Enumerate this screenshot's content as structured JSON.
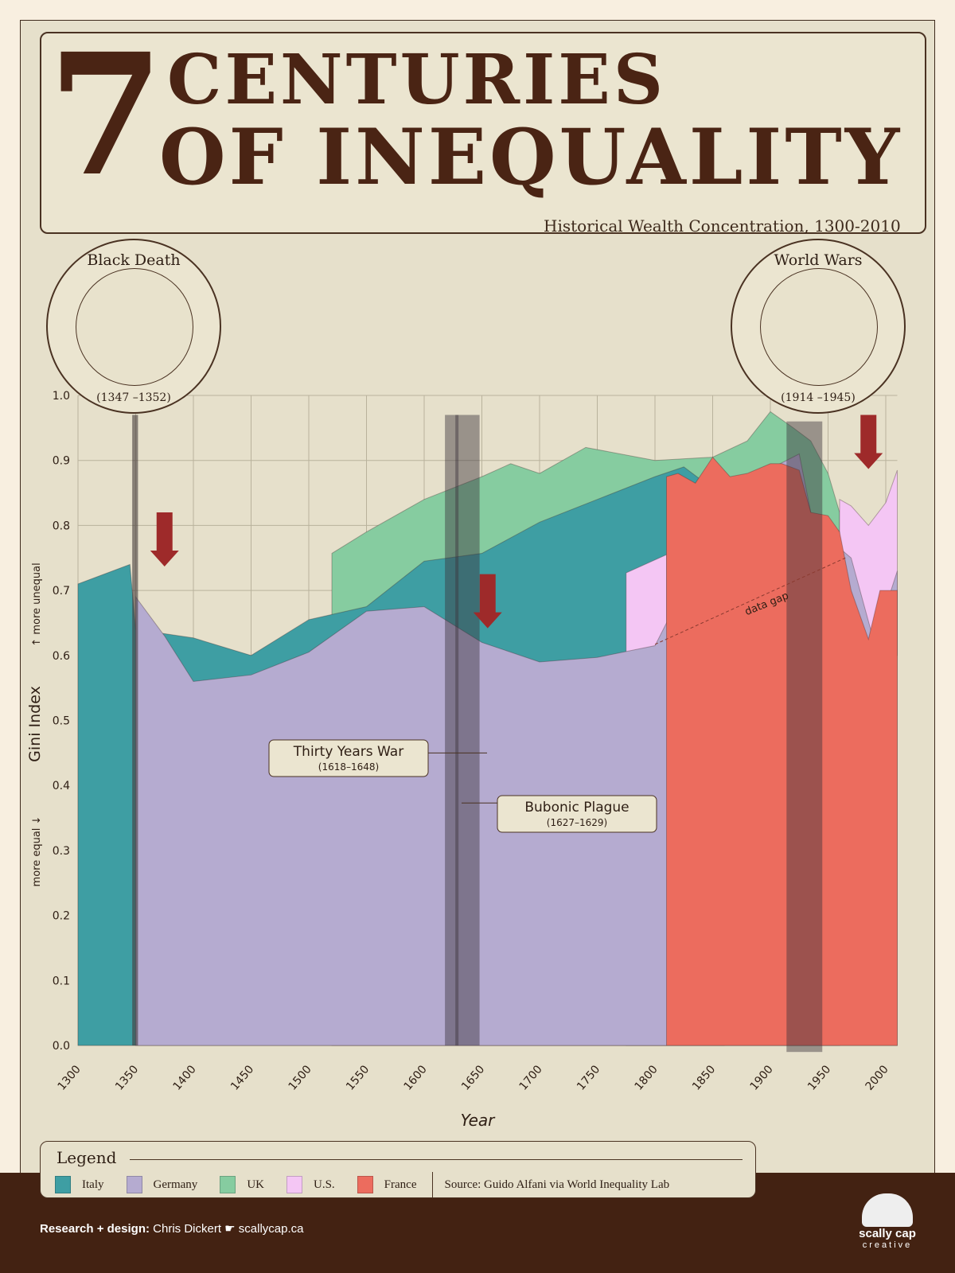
{
  "title": {
    "number": "7",
    "line1": "CENTURIES",
    "line2": "OF INEQUALITY",
    "subtitle": "Historical Wealth Concentration, 1300-2010"
  },
  "medallions": [
    {
      "name": "Black Death",
      "dates": "(1347 –1352)"
    },
    {
      "name": "World Wars",
      "dates": "(1914 –1945)"
    }
  ],
  "chart_data": {
    "type": "area",
    "title": "7 Centuries of Inequality",
    "xlabel": "Year",
    "ylabel": "Gini Index",
    "ylabel_up": "more unequal",
    "ylabel_down": "more equal",
    "xlim": [
      1300,
      2010
    ],
    "ylim": [
      0,
      1
    ],
    "xticks": [
      1300,
      1350,
      1400,
      1450,
      1500,
      1550,
      1600,
      1650,
      1700,
      1750,
      1800,
      1850,
      1900,
      1950,
      2000
    ],
    "yticks": [
      "0.0",
      "0.1",
      "0.2",
      "0.3",
      "0.4",
      "0.5",
      "0.6",
      "0.7",
      "0.8",
      "0.9",
      "1.0"
    ],
    "grid": true,
    "series": [
      {
        "name": "UK",
        "color": "#86cca0",
        "x": [
          1520,
          1550,
          1600,
          1650,
          1675,
          1700,
          1740,
          1800,
          1850,
          1880,
          1900,
          1920,
          1935,
          1950,
          1960
        ],
        "y": [
          0.757,
          0.79,
          0.84,
          0.875,
          0.895,
          0.88,
          0.92,
          0.9,
          0.905,
          0.93,
          0.975,
          0.95,
          0.93,
          0.88,
          0.82
        ]
      },
      {
        "name": "Italy",
        "color": "#3e9ea3",
        "x": [
          1300,
          1345,
          1350,
          1400,
          1450,
          1500,
          1550,
          1600,
          1650,
          1700,
          1750,
          1800,
          1825,
          1840,
          1860
        ],
        "y": [
          0.71,
          0.74,
          0.64,
          0.627,
          0.6,
          0.655,
          0.675,
          0.745,
          0.757,
          0.805,
          0.84,
          0.875,
          0.89,
          0.87,
          0.88
        ]
      },
      {
        "name": "U.S.",
        "color": "#f4c6f4",
        "x": [
          1775,
          1810,
          1960,
          1970,
          1985,
          2000,
          2010
        ],
        "y": [
          0.727,
          0.755,
          0.84,
          0.83,
          0.8,
          0.835,
          0.885
        ]
      },
      {
        "name": "Germany",
        "color": "#b5abd0",
        "x": [
          1350,
          1375,
          1400,
          1450,
          1500,
          1550,
          1600,
          1650,
          1700,
          1750,
          1800,
          1870,
          1925,
          1935,
          1950,
          1970,
          1990,
          2010
        ],
        "y": [
          0.69,
          0.63,
          0.56,
          0.57,
          0.605,
          0.668,
          0.675,
          0.62,
          0.59,
          0.597,
          0.615,
          0.86,
          0.91,
          0.82,
          0.78,
          0.75,
          0.62,
          0.73
        ]
      },
      {
        "name": "France",
        "color": "#ec6c5e",
        "x": [
          1810,
          1820,
          1835,
          1850,
          1865,
          1880,
          1900,
          1910,
          1925,
          1935,
          1950,
          1960,
          1970,
          1985,
          1995,
          2010
        ],
        "y": [
          0.875,
          0.88,
          0.865,
          0.905,
          0.875,
          0.88,
          0.895,
          0.895,
          0.885,
          0.82,
          0.815,
          0.79,
          0.7,
          0.625,
          0.7,
          0.7
        ]
      }
    ],
    "events": [
      {
        "label": "Black Death",
        "start": 1347,
        "end": 1352
      },
      {
        "label": "Thirty Years War",
        "dates": "(1618–1648)",
        "start": 1618,
        "end": 1648
      },
      {
        "label": "Bubonic Plague",
        "dates": "(1627–1629)",
        "start": 1627,
        "end": 1629
      },
      {
        "label": "World Wars",
        "start": 1914,
        "end": 1945
      }
    ],
    "arrows": [
      1375,
      1655,
      1985
    ],
    "annotation": {
      "label": "data gap",
      "from": [
        1800,
        0.617
      ],
      "to": [
        1965,
        0.75
      ]
    }
  },
  "legend": {
    "title": "Legend",
    "items": [
      {
        "name": "Italy",
        "color": "#3e9ea3"
      },
      {
        "name": "Germany",
        "color": "#b5abd0"
      },
      {
        "name": "UK",
        "color": "#86cca0"
      },
      {
        "name": "U.S.",
        "color": "#f4c6f4"
      },
      {
        "name": "France",
        "color": "#ec6c5e"
      }
    ],
    "source": "Source: Guido Alfani via World Inequality Lab"
  },
  "footer": {
    "credit_label": "Research + design:",
    "credit_name": "Chris Dickert",
    "pointer": "☛",
    "site": "scallycap.ca",
    "logo_line1": "scally cap",
    "logo_line2": "creative"
  }
}
